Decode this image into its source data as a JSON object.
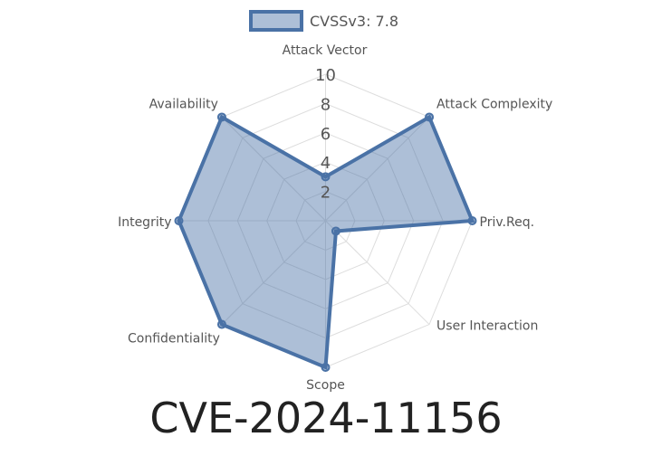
{
  "chart_data": {
    "type": "radar",
    "title": "CVE-2024-11156",
    "axes": [
      "Attack Vector",
      "Attack Complexity",
      "Priv.Req.",
      "User Interaction",
      "Scope",
      "Confidentiality",
      "Integrity",
      "Availability"
    ],
    "series": [
      {
        "name": "CVSSv3: 7.8",
        "values": [
          3,
          10,
          10,
          1,
          10,
          10,
          10,
          10
        ]
      }
    ],
    "rlim": [
      0,
      10
    ],
    "ticks": [
      "2",
      "4",
      "6",
      "8",
      "10"
    ],
    "grid": true,
    "legend": "top",
    "colors": {
      "line": "#4a72a6",
      "fill": "#4a72a6",
      "grid": "#dddddd"
    }
  }
}
